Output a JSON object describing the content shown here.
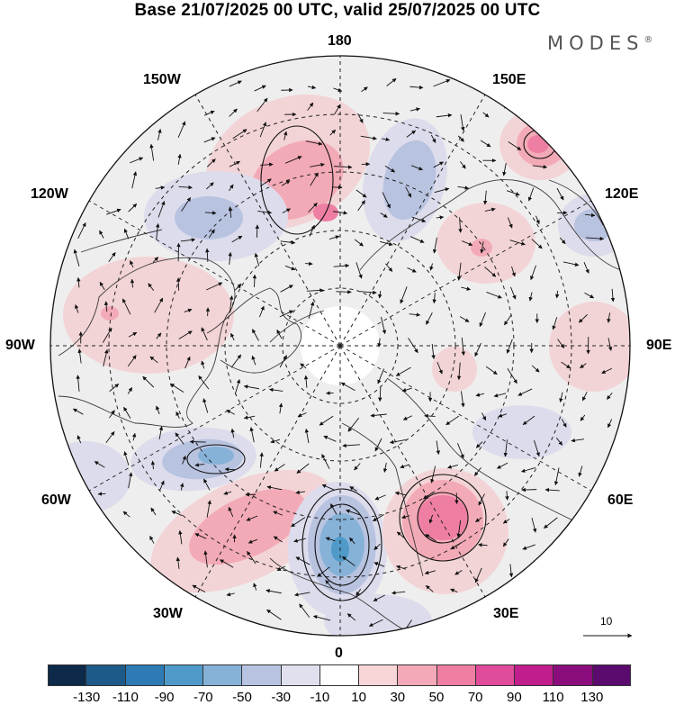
{
  "title": "Base 21/07/2025 00 UTC, valid 25/07/2025 00 UTC",
  "brand": "MODES",
  "brand_mark": "®",
  "meridian_labels": {
    "lon_180": "180",
    "lon_150w": "150W",
    "lon_150e": "150E",
    "lon_120w": "120W",
    "lon_120e": "120E",
    "lon_90w": "90W",
    "lon_90e": "90E",
    "lon_60w": "60W",
    "lon_60e": "60E",
    "lon_30w": "30W",
    "lon_30e": "30E",
    "lon_0": "0"
  },
  "reference_vector": "10",
  "colorbar": {
    "ticks": [
      "-130",
      "-110",
      "-90",
      "-70",
      "-50",
      "-30",
      "-10",
      "10",
      "30",
      "50",
      "70",
      "90",
      "110",
      "130"
    ],
    "colors": [
      "#0d2a4a",
      "#1d5a8a",
      "#2d7ab4",
      "#4f9ac9",
      "#87b2d8",
      "#b7c3e1",
      "#e0e0ee",
      "#ffffff",
      "#f8d5d6",
      "#f3a9b7",
      "#ee7fa3",
      "#e04b9c",
      "#c21d8c",
      "#8b0d7d",
      "#5b0a6e"
    ]
  },
  "anomaly_colors": {
    "positive_weak": "#f3d4d6",
    "positive_mid": "#f3aab7",
    "positive_strong": "#ee7fa3",
    "positive_max": "#e04b9c",
    "negative_weak": "#dcdcec",
    "negative_mid": "#b8c3e0",
    "negative_strong": "#87b2d8",
    "negative_max": "#4f9ac9"
  }
}
